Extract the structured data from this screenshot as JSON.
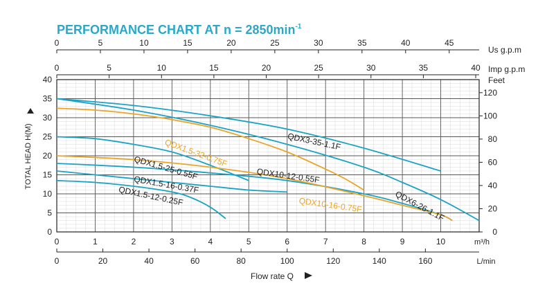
{
  "chart_data": {
    "type": "line",
    "title": "PERFORMANCE CHART AT n = 2850min",
    "title_superscript": "-1",
    "colors": {
      "blue": "#1aa3c4",
      "orange": "#eaa528",
      "title": "#29a8c8"
    },
    "grid": true,
    "x_primary": {
      "label": "m³/h",
      "ticks": [
        "0",
        "1",
        "2",
        "3",
        "4",
        "5",
        "6",
        "7",
        "8",
        "9",
        "10"
      ],
      "range": [
        0,
        11
      ]
    },
    "y_left": {
      "label": "TOTAL HEAD H(M)",
      "ticks": [
        "0",
        "5",
        "10",
        "15",
        "20",
        "25",
        "30",
        "35",
        "40"
      ],
      "range": [
        0,
        40
      ]
    },
    "y_right": {
      "label": "Feet",
      "ticks": [
        "0",
        "20",
        "40",
        "60",
        "80",
        "100",
        "120"
      ],
      "values": [
        0,
        20,
        40,
        60,
        80,
        100,
        120
      ]
    },
    "x_top_us": {
      "label": "Us g.p.m",
      "ticks": [
        "0",
        "5",
        "10",
        "15",
        "20",
        "25",
        "30",
        "35",
        "40",
        "45"
      ],
      "values": [
        0,
        5,
        10,
        15,
        20,
        25,
        30,
        35,
        40,
        45
      ]
    },
    "x_top_imp": {
      "label": "Imp g.p.m",
      "ticks": [
        "0",
        "5",
        "10",
        "15",
        "20",
        "25",
        "30",
        "35",
        "40"
      ],
      "values": [
        0,
        5,
        10,
        15,
        20,
        25,
        30,
        35,
        40
      ]
    },
    "x_bottom_lmin": {
      "label": "L/min",
      "ticks": [
        "0",
        "20",
        "40",
        "60",
        "80",
        "100",
        "120",
        "140",
        "160"
      ],
      "values": [
        0,
        20,
        40,
        60,
        80,
        100,
        120,
        140,
        160
      ]
    },
    "x_caption": "Flow rate Q",
    "series": [
      {
        "name": "QDX3-35-1.1F",
        "color": "blue",
        "x": [
          0,
          2,
          4,
          6,
          8,
          10
        ],
        "y": [
          35,
          33.2,
          30.5,
          27,
          22,
          16
        ],
        "label_at": [
          6.0,
          24.5
        ],
        "label_angle": 12
      },
      {
        "name": "QDX1.5-32-0.75F",
        "color": "orange",
        "x": [
          0,
          1,
          2,
          3,
          4,
          5,
          6,
          7,
          7.5,
          8
        ],
        "y": [
          32.5,
          32,
          31,
          29.5,
          27.5,
          24.5,
          21,
          16.5,
          14,
          11
        ],
        "label_at": [
          2.8,
          23
        ],
        "label_angle": 20
      },
      {
        "name": "QDX1.5-25-0.55F",
        "color": "blue",
        "x": [
          0,
          1,
          2,
          3,
          4,
          5
        ],
        "y": [
          25,
          24.5,
          23,
          21,
          17.5,
          13.5
        ],
        "label_at": [
          2.0,
          18.5
        ],
        "label_angle": 16
      },
      {
        "name": "QDX6-26-1.1F",
        "color": "blue",
        "x": [
          0,
          2,
          4,
          6,
          8,
          9,
          10,
          11
        ],
        "y": [
          35,
          32,
          28,
          23,
          17,
          13,
          8.5,
          3
        ],
        "label_at": [
          8.8,
          9.5
        ],
        "label_angle": 28
      },
      {
        "name": "QDX10-12-0.55F",
        "color": "blue",
        "x": [
          0,
          2,
          4,
          6,
          8,
          9,
          10,
          10.3
        ],
        "y": [
          18,
          17,
          15.5,
          13.5,
          10,
          7.5,
          4.5,
          3
        ],
        "label_at": [
          5.2,
          15.2
        ],
        "label_angle": 8
      },
      {
        "name": "QDX10-16-0.75F",
        "color": "orange",
        "x": [
          0,
          2,
          4,
          6,
          8,
          9,
          10,
          10.3
        ],
        "y": [
          20,
          19,
          17,
          14,
          9.5,
          7,
          4.5,
          3
        ],
        "label_at": [
          6.3,
          7.5
        ],
        "label_angle": 8
      },
      {
        "name": "QDX1.5-16-0.37F",
        "color": "blue",
        "x": [
          0,
          1,
          2,
          3,
          4,
          5,
          6
        ],
        "y": [
          16,
          15,
          14,
          13,
          12,
          11,
          10.5
        ],
        "label_at": [
          2.0,
          13.2
        ],
        "label_angle": 10
      },
      {
        "name": "QDX1.5-12-0.25F",
        "color": "blue",
        "x": [
          0,
          1,
          2,
          3,
          3.5,
          4,
          4.4
        ],
        "y": [
          13.5,
          13,
          12,
          10.5,
          9,
          6.5,
          3.5
        ],
        "label_at": [
          1.6,
          10.5
        ],
        "label_angle": 12
      }
    ]
  }
}
